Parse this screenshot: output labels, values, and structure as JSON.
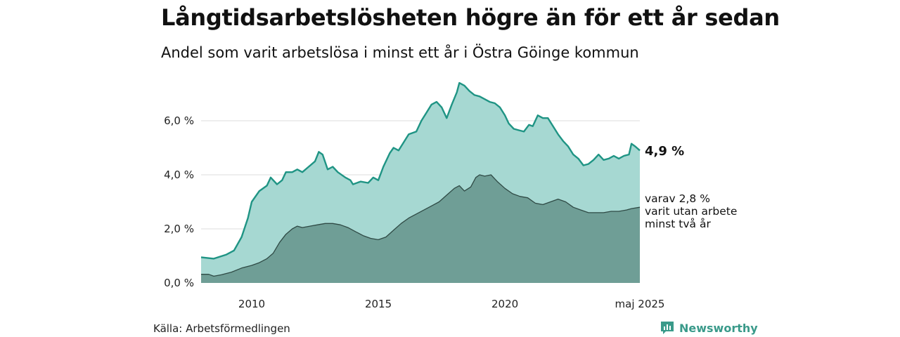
{
  "title": "Långtidsarbetslösheten högre än för ett år sedan",
  "subtitle": "Andel som varit arbetslösa i minst ett år i Östra Göinge kommun",
  "source": "Källa: Arbetsförmedlingen",
  "brand": "Newsworthy",
  "colors": {
    "total_line": "#1f9484",
    "total_fill": "#a6d8d2",
    "long_fill": "#6f9e96",
    "long_line": "#2f4a45",
    "grid": "#dddddd"
  },
  "chart_data": {
    "type": "area",
    "x_start": "2008-01",
    "x_end": "2025-05",
    "xticks": [
      {
        "x": 2010,
        "label": "2010"
      },
      {
        "x": 2015,
        "label": "2015"
      },
      {
        "x": 2020,
        "label": "2020"
      },
      {
        "x": 2025.33,
        "label": "maj 2025"
      }
    ],
    "yticks": [
      {
        "y": 0,
        "label": "0,0 %"
      },
      {
        "y": 2,
        "label": "2,0 %"
      },
      {
        "y": 4,
        "label": "4,0 %"
      },
      {
        "y": 6,
        "label": "6,0 %"
      }
    ],
    "ylim": [
      0,
      7.6
    ],
    "grid": true,
    "end_labels": {
      "total": "4,9 %",
      "long_term": [
        "varav 2,8 %",
        "varit utan arbete",
        "minst två år"
      ]
    },
    "series": [
      {
        "key": "total",
        "points": [
          [
            2008.0,
            0.95
          ],
          [
            2008.5,
            0.9
          ],
          [
            2009.0,
            1.05
          ],
          [
            2009.3,
            1.2
          ],
          [
            2009.6,
            1.7
          ],
          [
            2009.85,
            2.4
          ],
          [
            2010.0,
            3.0
          ],
          [
            2010.3,
            3.4
          ],
          [
            2010.6,
            3.6
          ],
          [
            2010.75,
            3.9
          ],
          [
            2011.0,
            3.65
          ],
          [
            2011.2,
            3.8
          ],
          [
            2011.35,
            4.1
          ],
          [
            2011.6,
            4.1
          ],
          [
            2011.8,
            4.2
          ],
          [
            2012.0,
            4.1
          ],
          [
            2012.25,
            4.3
          ],
          [
            2012.5,
            4.5
          ],
          [
            2012.65,
            4.85
          ],
          [
            2012.8,
            4.75
          ],
          [
            2013.0,
            4.2
          ],
          [
            2013.2,
            4.3
          ],
          [
            2013.4,
            4.1
          ],
          [
            2013.7,
            3.9
          ],
          [
            2013.9,
            3.8
          ],
          [
            2014.0,
            3.65
          ],
          [
            2014.3,
            3.75
          ],
          [
            2014.6,
            3.7
          ],
          [
            2014.8,
            3.9
          ],
          [
            2015.0,
            3.8
          ],
          [
            2015.2,
            4.3
          ],
          [
            2015.45,
            4.8
          ],
          [
            2015.6,
            5.0
          ],
          [
            2015.8,
            4.9
          ],
          [
            2016.0,
            5.2
          ],
          [
            2016.2,
            5.5
          ],
          [
            2016.5,
            5.6
          ],
          [
            2016.7,
            6.0
          ],
          [
            2016.9,
            6.3
          ],
          [
            2017.1,
            6.6
          ],
          [
            2017.3,
            6.7
          ],
          [
            2017.5,
            6.5
          ],
          [
            2017.7,
            6.1
          ],
          [
            2017.9,
            6.6
          ],
          [
            2018.1,
            7.05
          ],
          [
            2018.2,
            7.4
          ],
          [
            2018.4,
            7.3
          ],
          [
            2018.6,
            7.1
          ],
          [
            2018.8,
            6.95
          ],
          [
            2019.0,
            6.9
          ],
          [
            2019.2,
            6.8
          ],
          [
            2019.4,
            6.7
          ],
          [
            2019.6,
            6.65
          ],
          [
            2019.8,
            6.5
          ],
          [
            2020.0,
            6.2
          ],
          [
            2020.15,
            5.9
          ],
          [
            2020.35,
            5.7
          ],
          [
            2020.55,
            5.65
          ],
          [
            2020.75,
            5.6
          ],
          [
            2020.95,
            5.85
          ],
          [
            2021.1,
            5.8
          ],
          [
            2021.3,
            6.2
          ],
          [
            2021.5,
            6.1
          ],
          [
            2021.7,
            6.1
          ],
          [
            2021.9,
            5.8
          ],
          [
            2022.1,
            5.5
          ],
          [
            2022.3,
            5.25
          ],
          [
            2022.5,
            5.05
          ],
          [
            2022.7,
            4.75
          ],
          [
            2022.9,
            4.6
          ],
          [
            2023.1,
            4.35
          ],
          [
            2023.3,
            4.4
          ],
          [
            2023.5,
            4.55
          ],
          [
            2023.7,
            4.75
          ],
          [
            2023.9,
            4.55
          ],
          [
            2024.1,
            4.6
          ],
          [
            2024.3,
            4.7
          ],
          [
            2024.5,
            4.6
          ],
          [
            2024.7,
            4.7
          ],
          [
            2024.9,
            4.75
          ],
          [
            2025.0,
            5.15
          ],
          [
            2025.15,
            5.05
          ],
          [
            2025.33,
            4.9
          ]
        ]
      },
      {
        "key": "long_term",
        "points": [
          [
            2008.0,
            0.32
          ],
          [
            2008.3,
            0.32
          ],
          [
            2008.5,
            0.25
          ],
          [
            2008.8,
            0.3
          ],
          [
            2009.2,
            0.4
          ],
          [
            2009.6,
            0.55
          ],
          [
            2010.0,
            0.65
          ],
          [
            2010.3,
            0.75
          ],
          [
            2010.6,
            0.9
          ],
          [
            2010.85,
            1.1
          ],
          [
            2011.1,
            1.5
          ],
          [
            2011.35,
            1.8
          ],
          [
            2011.6,
            2.0
          ],
          [
            2011.8,
            2.1
          ],
          [
            2012.0,
            2.05
          ],
          [
            2012.3,
            2.1
          ],
          [
            2012.6,
            2.15
          ],
          [
            2012.9,
            2.2
          ],
          [
            2013.2,
            2.2
          ],
          [
            2013.5,
            2.15
          ],
          [
            2013.8,
            2.05
          ],
          [
            2014.1,
            1.9
          ],
          [
            2014.4,
            1.75
          ],
          [
            2014.7,
            1.65
          ],
          [
            2015.0,
            1.6
          ],
          [
            2015.3,
            1.7
          ],
          [
            2015.6,
            1.95
          ],
          [
            2015.9,
            2.2
          ],
          [
            2016.2,
            2.4
          ],
          [
            2016.5,
            2.55
          ],
          [
            2016.8,
            2.7
          ],
          [
            2017.1,
            2.85
          ],
          [
            2017.4,
            3.0
          ],
          [
            2017.7,
            3.25
          ],
          [
            2018.0,
            3.5
          ],
          [
            2018.2,
            3.6
          ],
          [
            2018.4,
            3.4
          ],
          [
            2018.65,
            3.55
          ],
          [
            2018.85,
            3.9
          ],
          [
            2019.0,
            4.0
          ],
          [
            2019.2,
            3.95
          ],
          [
            2019.45,
            4.0
          ],
          [
            2019.7,
            3.75
          ],
          [
            2020.0,
            3.5
          ],
          [
            2020.3,
            3.3
          ],
          [
            2020.6,
            3.2
          ],
          [
            2020.9,
            3.15
          ],
          [
            2021.2,
            2.95
          ],
          [
            2021.5,
            2.9
          ],
          [
            2021.8,
            3.0
          ],
          [
            2022.1,
            3.1
          ],
          [
            2022.4,
            3.0
          ],
          [
            2022.7,
            2.8
          ],
          [
            2023.0,
            2.7
          ],
          [
            2023.3,
            2.6
          ],
          [
            2023.6,
            2.6
          ],
          [
            2023.9,
            2.6
          ],
          [
            2024.2,
            2.65
          ],
          [
            2024.5,
            2.65
          ],
          [
            2024.8,
            2.7
          ],
          [
            2025.0,
            2.75
          ],
          [
            2025.33,
            2.8
          ]
        ]
      }
    ]
  }
}
